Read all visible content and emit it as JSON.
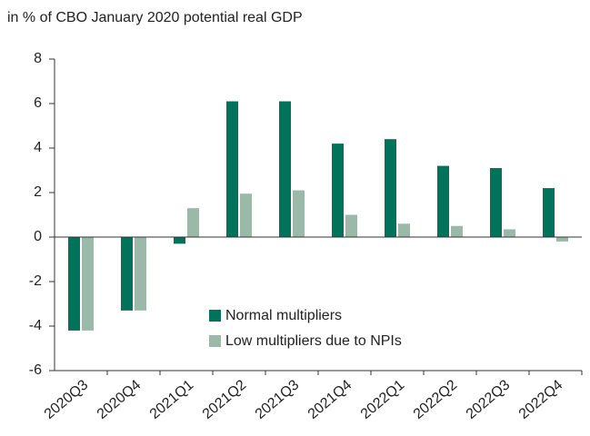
{
  "chart_data": {
    "type": "bar",
    "title": "in % of CBO January 2020 potential real GDP",
    "categories": [
      "2020Q3",
      "2020Q4",
      "2021Q1",
      "2021Q2",
      "2021Q3",
      "2021Q4",
      "2022Q1",
      "2022Q2",
      "2022Q3",
      "2022Q4"
    ],
    "series": [
      {
        "name": "Normal multipliers",
        "color": "#00735a",
        "values": [
          -4.2,
          -3.3,
          -0.3,
          6.1,
          6.1,
          4.2,
          4.4,
          3.2,
          3.1,
          2.2
        ]
      },
      {
        "name": "Low multipliers due to NPIs",
        "color": "#9bb9a8",
        "values": [
          -4.2,
          -3.3,
          1.3,
          1.95,
          2.1,
          1.0,
          0.6,
          0.5,
          0.35,
          -0.2
        ]
      }
    ],
    "ylim": [
      -6,
      8
    ],
    "yticks": [
      -6,
      -4,
      -2,
      0,
      2,
      4,
      6,
      8
    ],
    "grid": false
  }
}
